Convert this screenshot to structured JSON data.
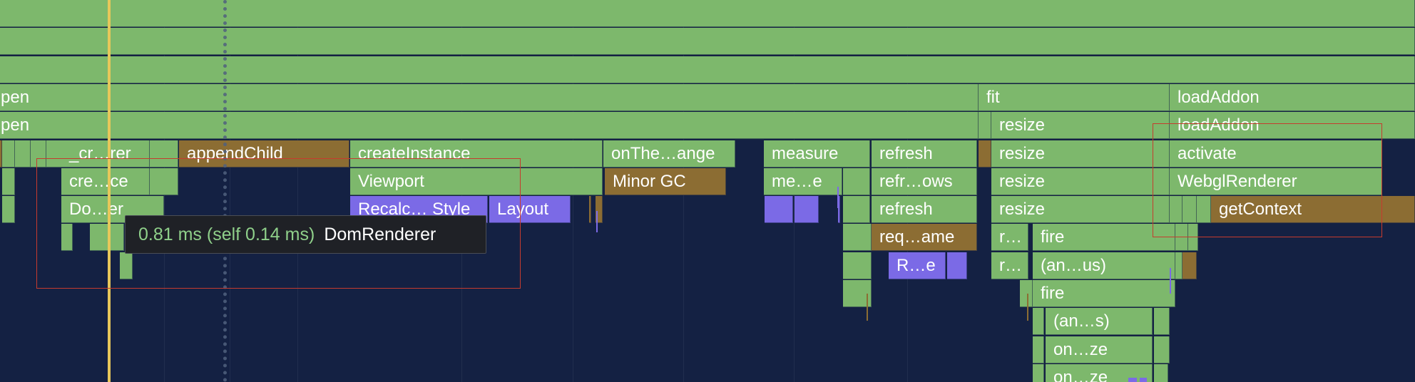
{
  "flamechart": {
    "labels": {
      "open_1": "pen",
      "open_2": "pen",
      "fit": "fit",
      "load_addon_1": "loadAddon",
      "load_addon_2": "loadAddon",
      "resize_1": "resize",
      "resize_2": "resize",
      "resize_3": "resize",
      "resize_4": "resize",
      "create_renderer": "_cr…rer",
      "append_child": "appendChild",
      "create_instance": "createInstance",
      "on_theme_change": "onThe…ange",
      "measure": "measure",
      "refresh_1": "refresh",
      "activate": "activate",
      "create_2": "cre…ce",
      "viewport": "Viewport",
      "minor_gc": "Minor GC",
      "measure_2": "me…e",
      "refresh_rows": "refr…ows",
      "webgl_renderer": "WebglRenderer",
      "dom_renderer": "Do…er",
      "recalc_style": "Recalc… Style",
      "layout": "Layout",
      "refresh_2": "refresh",
      "get_context": "getContext",
      "request_frame": "req…ame",
      "r_1": "r…",
      "fire_1": "fire",
      "r_e": "R…e",
      "r_2": "r…",
      "anonymous_1": "(an…us)",
      "fire_2": "fire",
      "anonymous_2": "(an…s)",
      "on_resize_1": "on…ze",
      "on_resize_2": "on…ze"
    },
    "colors": {
      "background": "#142143",
      "js_frame": "#7db86c",
      "gc_frame": "#8c6d33",
      "render_frame": "#7b6ae6",
      "playhead": "#e7c75a",
      "selection": "#c63b2e"
    }
  },
  "tooltip": {
    "time": "0.81 ms (self 0.14 ms)",
    "name": "DomRenderer"
  }
}
